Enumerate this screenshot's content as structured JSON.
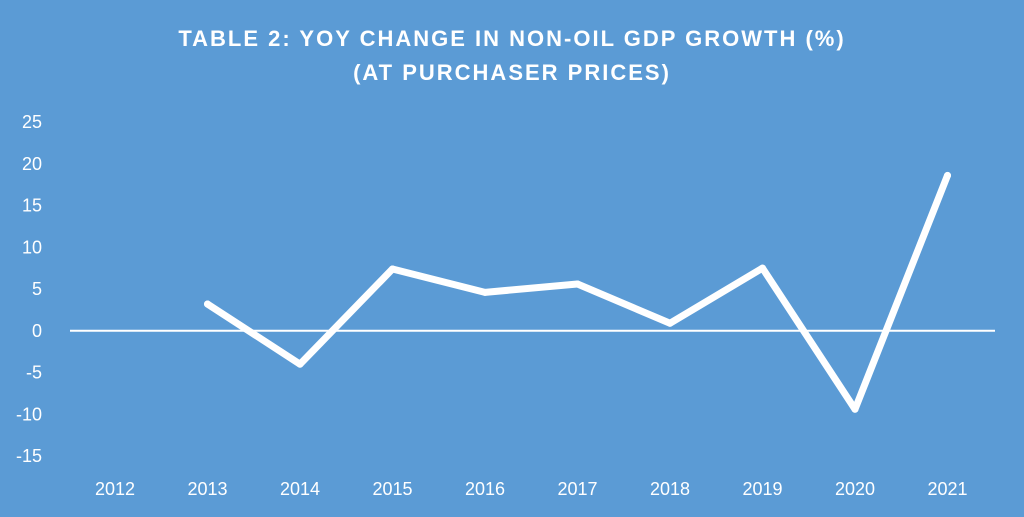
{
  "chart_data": {
    "type": "line",
    "title": "TABLE 2: YOY CHANGE IN NON-OIL GDP GROWTH (%)",
    "subtitle": "(AT PURCHASER PRICES)",
    "categories": [
      "2012",
      "2013",
      "2014",
      "2015",
      "2016",
      "2017",
      "2018",
      "2019",
      "2020",
      "2021"
    ],
    "series": [
      {
        "values": [
          null,
          3.2,
          -4,
          7.4,
          4.6,
          5.6,
          0.9,
          7.5,
          -9.4,
          18.6
        ]
      }
    ],
    "ylim": [
      -15,
      25
    ],
    "yticks": [
      25,
      20,
      15,
      10,
      5,
      0,
      -5,
      -10,
      -15
    ],
    "xlabel": "",
    "ylabel": "",
    "grid": false,
    "drop_lines": true,
    "colors": {
      "background": "#5b9bd5",
      "line": "#ffffff",
      "text": "#ffffff"
    }
  }
}
